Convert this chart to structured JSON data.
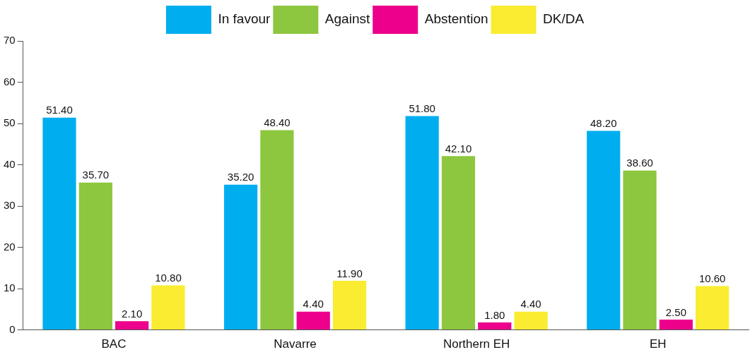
{
  "chart_data": {
    "type": "bar",
    "categories": [
      "BAC",
      "Navarre",
      "Northern EH",
      "EH"
    ],
    "series": [
      {
        "name": "In favour",
        "color": "#00aeef",
        "values": [
          51.4,
          35.2,
          51.8,
          48.2
        ],
        "value_labels": [
          "51.40",
          "35.20",
          "51.80",
          "48.20"
        ]
      },
      {
        "name": "Against",
        "color": "#8dc63f",
        "values": [
          35.7,
          48.4,
          42.1,
          38.6
        ],
        "value_labels": [
          "35.70",
          "48.40",
          "42.10",
          "38.60"
        ]
      },
      {
        "name": "Abstention",
        "color": "#ec008c",
        "values": [
          2.1,
          4.4,
          1.8,
          2.5
        ],
        "value_labels": [
          "2.10",
          "4.40",
          "1.80",
          "2.50"
        ]
      },
      {
        "name": "DK/DA",
        "color": "#f9ec31",
        "values": [
          10.8,
          11.9,
          4.4,
          10.6
        ],
        "value_labels": [
          "10.80",
          "11.90",
          "4.40",
          "10.60"
        ]
      }
    ],
    "ylim": [
      0,
      70
    ],
    "yticks": [
      0,
      10,
      20,
      30,
      40,
      50,
      60,
      70
    ],
    "grid": false,
    "legend": "top"
  }
}
